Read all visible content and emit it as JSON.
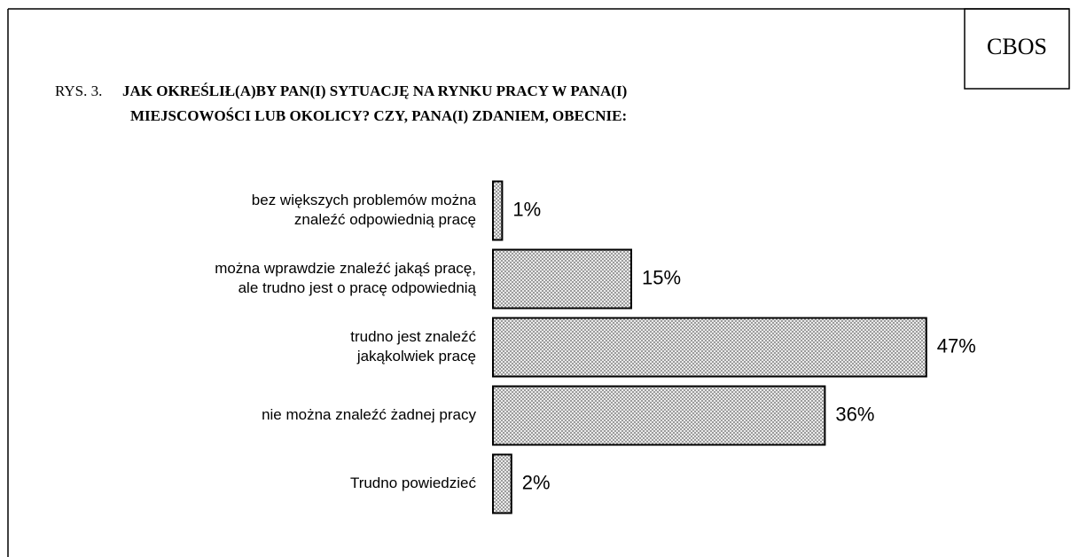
{
  "badge": "CBOS",
  "chart_data": {
    "type": "hbar",
    "figure_label": "RYS. 3.",
    "title_lines": [
      "JAK OKREŚLIŁ(A)BY PAN(I) SYTUACJĘ NA RYNKU PRACY W PANA(I)",
      "MIEJSCOWOŚCI LUB OKOLICY? CZY, PANA(I) ZDANIEM, OBECNIE:"
    ],
    "categories": [
      [
        "bez większych problemów można",
        "znaleźć odpowiednią pracę"
      ],
      [
        "można wprawdzie znaleźć jakąś pracę,",
        "ale trudno jest o pracę odpowiednią"
      ],
      [
        "trudno jest znaleźć",
        "jakąkolwiek pracę"
      ],
      [
        "nie można znaleźć żadnej pracy"
      ],
      [
        "Trudno powiedzieć"
      ]
    ],
    "values": [
      1,
      15,
      47,
      36,
      2
    ],
    "value_labels": [
      "1%",
      "15%",
      "47%",
      "36%",
      "2%"
    ],
    "color": "#bdbdbd",
    "xlim": [
      0,
      50
    ]
  }
}
